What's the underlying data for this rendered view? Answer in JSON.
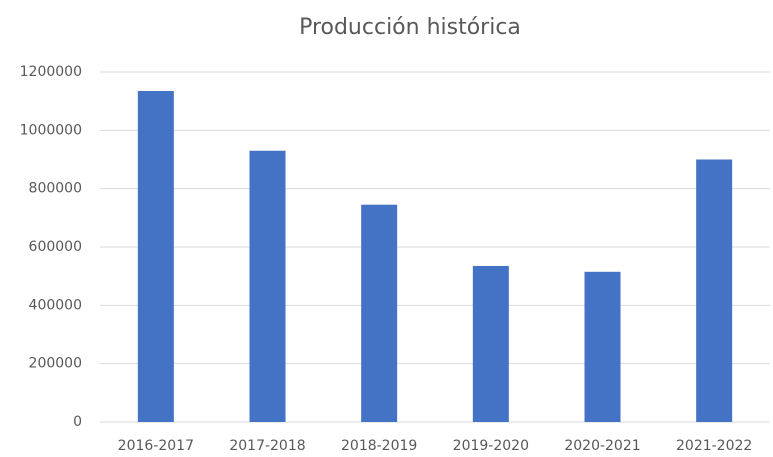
{
  "chart_data": {
    "type": "bar",
    "title": "Producción histórica",
    "categories": [
      "2016-2017",
      "2017-2018",
      "2018-2019",
      "2019-2020",
      "2020-2021",
      "2021-2022"
    ],
    "values": [
      1135000,
      930000,
      745000,
      535000,
      515000,
      900000
    ],
    "color": "#4472c4",
    "ylim": [
      0,
      1200000
    ],
    "yticks": [
      0,
      200000,
      400000,
      600000,
      800000,
      1000000,
      1200000
    ],
    "grid": true
  }
}
